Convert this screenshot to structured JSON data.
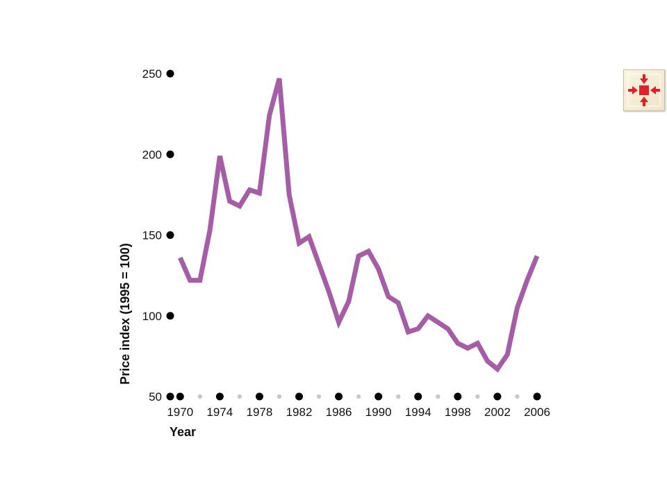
{
  "chart_data": {
    "type": "line",
    "xlabel": "Year",
    "ylabel": "Price index (1995 = 100)",
    "xlim": [
      1969,
      2006
    ],
    "ylim": [
      50,
      250
    ],
    "x_ticks": [
      1970,
      1974,
      1978,
      1982,
      1986,
      1990,
      1994,
      1998,
      2002,
      2006
    ],
    "y_ticks": [
      50,
      100,
      150,
      200,
      250
    ],
    "line_color": "#a55ea5",
    "series": [
      {
        "x": [
          1970,
          1971,
          1972,
          1973,
          1974,
          1975,
          1976,
          1977,
          1978,
          1979,
          1980,
          1981,
          1982,
          1983,
          1984,
          1985,
          1986,
          1987,
          1988,
          1989,
          1990,
          1991,
          1992,
          1993,
          1994,
          1995,
          1996,
          1997,
          1998,
          1999,
          2000,
          2001,
          2002,
          2003,
          2004,
          2005,
          2006
        ],
        "y": [
          136,
          122,
          122,
          153,
          199,
          171,
          168,
          178,
          176,
          224,
          247,
          175,
          145,
          149,
          132,
          115,
          96,
          109,
          137,
          140,
          129,
          112,
          108,
          90,
          92,
          100,
          96,
          92,
          83,
          80,
          83,
          72,
          67,
          76,
          105,
          122,
          137
        ]
      }
    ]
  },
  "expand_button": {
    "icon": "expand-arrows-icon",
    "color": "#e0202a"
  }
}
